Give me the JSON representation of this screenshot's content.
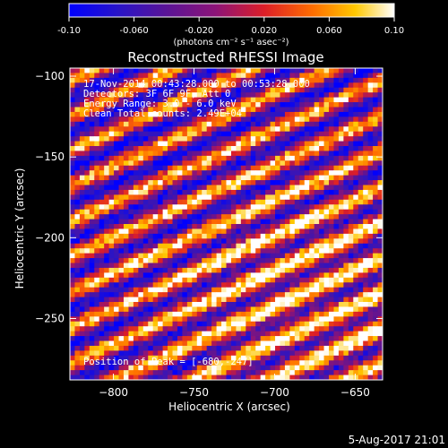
{
  "colorbar": {
    "ticks": [
      "-0.10",
      "-0.060",
      "-0.020",
      "0.020",
      "0.060",
      "0.10"
    ],
    "unit_label": "(photons cm⁻² s⁻¹ asec⁻²)"
  },
  "annotations": {
    "time": "17-Nov-2014 00:43:28.000 to 00:53:28.000",
    "detectors": "Detectors: 3F 6F 9F, Att 0",
    "energy": "Energy Range: 3.0 - 6.0 keV",
    "clean": "Clean    Total counts: 2.49E+04",
    "peak": "Position of Peak = [-680,-247]"
  },
  "footer": {
    "date": "5-Aug-2017 21:01"
  },
  "chart_data": {
    "type": "heatmap",
    "title": "Reconstructed RHESSI Image",
    "xlabel": "Heliocentric X (arcsec)",
    "ylabel": "Heliocentric Y (arcsec)",
    "xlim": [
      -827,
      -633
    ],
    "ylim": [
      -288,
      -95
    ],
    "x_ticks": [
      -800,
      -750,
      -700,
      -650
    ],
    "y_ticks": [
      -100,
      -150,
      -200,
      -250
    ],
    "x_tick_labels": [
      "−800",
      "−750",
      "−700",
      "−650"
    ],
    "y_tick_labels": [
      "−100",
      "−150",
      "−200",
      "−250"
    ],
    "zlim": [
      -0.1,
      0.1
    ],
    "colormap": "rainbow-like: blue to purple to red to orange to yellow to white",
    "pattern": "diagonal fringes rising to the upper right, 9 stripes across the field",
    "peak": [
      -680,
      -247
    ],
    "grid": false
  }
}
